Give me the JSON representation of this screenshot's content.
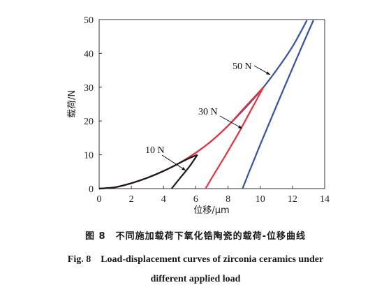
{
  "chart_data": {
    "type": "line",
    "xlabel": "位移/μm",
    "ylabel": "载荷/N",
    "xlim": [
      0,
      14
    ],
    "ylim": [
      0,
      50
    ],
    "xticks": [
      "0",
      "2",
      "4",
      "6",
      "8",
      "10",
      "12",
      "14"
    ],
    "yticks": [
      "0",
      "10",
      "20",
      "30",
      "40",
      "50"
    ],
    "grid": false,
    "series": [
      {
        "name": "10 N",
        "color": "#1a1a1a",
        "loading": {
          "x": [
            0,
            1,
            2,
            3,
            4,
            5,
            5.6,
            6.1
          ],
          "y": [
            0,
            0.4,
            1.6,
            3.2,
            5.2,
            7.6,
            9.0,
            10
          ]
        },
        "unloading": {
          "x": [
            6.1,
            5.6,
            5.0,
            4.5
          ],
          "y": [
            10,
            6.5,
            3.0,
            0
          ]
        }
      },
      {
        "name": "30 N",
        "color": "#e4323f",
        "loading": {
          "x": [
            0,
            1,
            2,
            3,
            4,
            5,
            6,
            7,
            8,
            9,
            10.2
          ],
          "y": [
            0,
            0.4,
            1.6,
            3.2,
            5.2,
            7.6,
            10.6,
            14.2,
            18.6,
            23.8,
            30
          ]
        },
        "unloading": {
          "x": [
            10.2,
            9.4,
            8.6,
            7.8,
            7.1,
            6.6
          ],
          "y": [
            30,
            23,
            16,
            9.5,
            4,
            0
          ]
        }
      },
      {
        "name": "50 N",
        "color": "#3552a6",
        "loading": {
          "x": [
            0,
            1,
            2,
            3,
            4,
            5,
            6,
            7,
            8,
            9,
            10,
            11,
            12,
            12.9
          ],
          "y": [
            0,
            0.4,
            1.6,
            3.2,
            5.2,
            7.6,
            10.6,
            14.2,
            18.6,
            23.5,
            28.8,
            35.0,
            42.0,
            49.8
          ]
        },
        "unloading": {
          "x": [
            13.3,
            12.4,
            11.5,
            10.7,
            10.0,
            9.4,
            8.9
          ],
          "y": [
            49.8,
            40,
            30,
            21,
            13,
            6,
            0
          ]
        }
      }
    ],
    "annotations": [
      {
        "text": "10 N",
        "target_series": "10 N"
      },
      {
        "text": "30 N",
        "target_series": "30 N"
      },
      {
        "text": "50 N",
        "target_series": "50 N"
      }
    ]
  },
  "caption": {
    "zh": "图 8　不同施加载荷下氧化锆陶瓷的载荷-位移曲线",
    "en_line1": "Fig. 8　Load-displacement curves of zirconia ceramics under",
    "en_line2": "different applied load"
  }
}
